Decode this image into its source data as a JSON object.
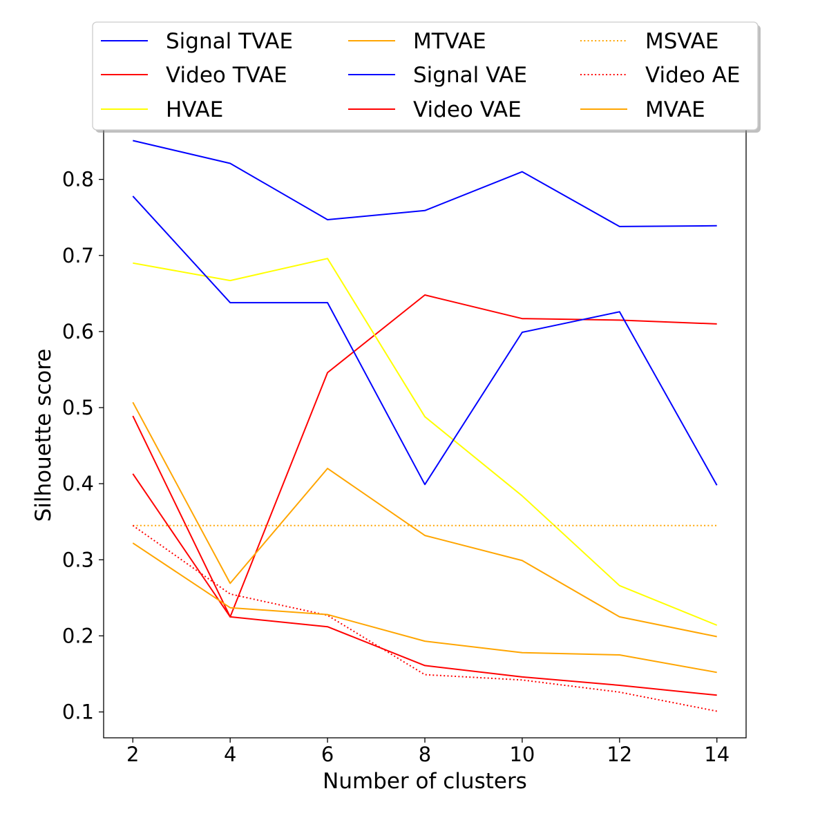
{
  "chart_data": {
    "type": "line",
    "xlabel": "Number of clusters",
    "ylabel": "Silhouette score",
    "x": [
      2,
      4,
      6,
      8,
      10,
      12,
      14
    ],
    "xlim": [
      1.4,
      14.6
    ],
    "ylim": [
      0.066,
      0.905
    ],
    "xticks": [
      "2",
      "4",
      "6",
      "8",
      "10",
      "12",
      "14"
    ],
    "yticks": [
      "0.1",
      "0.2",
      "0.3",
      "0.4",
      "0.5",
      "0.6",
      "0.7",
      "0.8"
    ],
    "grid": false,
    "legend_position": "top",
    "series": [
      {
        "name": "Signal TVAE",
        "color": "#0000ff",
        "style": "solid",
        "values": [
          0.851,
          0.821,
          0.747,
          0.759,
          0.81,
          0.738,
          0.739
        ]
      },
      {
        "name": "Video TVAE",
        "color": "#ff0000",
        "style": "solid",
        "values": [
          0.489,
          0.225,
          0.546,
          0.648,
          0.617,
          0.615,
          0.61
        ]
      },
      {
        "name": "HVAE",
        "color": "#ffff00",
        "style": "solid",
        "values": [
          0.69,
          0.667,
          0.696,
          0.488,
          0.384,
          0.266,
          0.214
        ]
      },
      {
        "name": "MTVAE",
        "color": "#ffa500",
        "style": "solid",
        "values": [
          0.507,
          0.269,
          0.42,
          0.332,
          0.299,
          0.225,
          0.199
        ]
      },
      {
        "name": "Signal VAE",
        "color": "#0000ff",
        "style": "solid",
        "values": [
          0.778,
          0.638,
          0.638,
          0.399,
          0.599,
          0.626,
          0.398
        ]
      },
      {
        "name": "Video VAE",
        "color": "#ff0000",
        "style": "solid",
        "values": [
          0.413,
          0.225,
          0.212,
          0.161,
          0.146,
          0.135,
          0.122
        ]
      },
      {
        "name": "MSVAE",
        "color": "#ffa500",
        "style": "dotted",
        "values": [
          0.345,
          0.345,
          0.345,
          0.345,
          0.345,
          0.345,
          0.345
        ]
      },
      {
        "name": "Video AE",
        "color": "#ff0000",
        "style": "dotted",
        "values": [
          0.345,
          0.255,
          0.227,
          0.149,
          0.142,
          0.126,
          0.101
        ]
      },
      {
        "name": "MVAE",
        "color": "#ffa500",
        "style": "solid",
        "values": [
          0.322,
          0.237,
          0.228,
          0.193,
          0.178,
          0.175,
          0.152
        ]
      }
    ]
  }
}
